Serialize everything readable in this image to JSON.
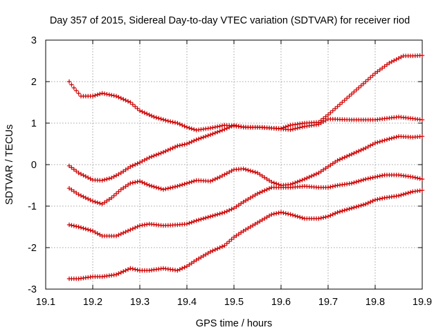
{
  "chart_data": {
    "type": "scatter",
    "title": "Day 357 of 2015, Sidereal Day-to-day VTEC variation (SDTVAR) for receiver riod",
    "xlabel": "GPS time / hours",
    "ylabel": "SDTVAR / TECUs",
    "xlim": [
      19.1,
      19.9
    ],
    "ylim": [
      -3,
      3
    ],
    "xticks": [
      19.1,
      19.2,
      19.3,
      19.4,
      19.5,
      19.6,
      19.7,
      19.8,
      19.9
    ],
    "xtick_labels": [
      "19.1",
      "19.2",
      "19.3",
      "19.4",
      "19.5",
      "19.6",
      "19.7",
      "19.8",
      "19.9"
    ],
    "yticks": [
      -3,
      -2,
      -1,
      0,
      1,
      2,
      3
    ],
    "ytick_labels": [
      "-3",
      "-2",
      "-1",
      "0",
      "1",
      "2",
      "3"
    ],
    "grid": true,
    "marker": "+",
    "color": "#cc0000",
    "series": [
      {
        "name": "series-top",
        "x": [
          19.15,
          19.16,
          19.175,
          19.2,
          19.22,
          19.25,
          19.28,
          19.3,
          19.33,
          19.36,
          19.38,
          19.4,
          19.42,
          19.45,
          19.48,
          19.5,
          19.53,
          19.56,
          19.6,
          19.62,
          19.65,
          19.68,
          19.7,
          19.75,
          19.8,
          19.85,
          19.9
        ],
        "y": [
          2.0,
          1.85,
          1.65,
          1.65,
          1.72,
          1.65,
          1.5,
          1.3,
          1.15,
          1.05,
          1.0,
          0.9,
          0.83,
          0.88,
          0.95,
          0.93,
          0.9,
          0.9,
          0.86,
          0.84,
          0.92,
          0.97,
          1.1,
          1.08,
          1.08,
          1.15,
          1.08
        ]
      },
      {
        "name": "series-second",
        "x": [
          19.15,
          19.17,
          19.2,
          19.22,
          19.24,
          19.26,
          19.28,
          19.3,
          19.32,
          19.35,
          19.38,
          19.4,
          19.42,
          19.45,
          19.48,
          19.5,
          19.52,
          19.55,
          19.58,
          19.6,
          19.62,
          19.65,
          19.68,
          19.7,
          19.72,
          19.75,
          19.78,
          19.8,
          19.83,
          19.86,
          19.88,
          19.9
        ],
        "y": [
          -0.03,
          -0.2,
          -0.37,
          -0.38,
          -0.32,
          -0.2,
          -0.05,
          0.05,
          0.17,
          0.3,
          0.45,
          0.5,
          0.6,
          0.72,
          0.85,
          0.95,
          0.9,
          0.9,
          0.88,
          0.87,
          0.95,
          1.0,
          1.02,
          1.2,
          1.4,
          1.7,
          2.0,
          2.2,
          2.45,
          2.62,
          2.62,
          2.63
        ]
      },
      {
        "name": "series-third",
        "x": [
          19.15,
          19.17,
          19.2,
          19.22,
          19.24,
          19.26,
          19.28,
          19.3,
          19.32,
          19.35,
          19.38,
          19.4,
          19.42,
          19.45,
          19.47,
          19.5,
          19.52,
          19.55,
          19.58,
          19.6,
          19.62,
          19.65,
          19.68,
          19.7,
          19.72,
          19.75,
          19.78,
          19.8,
          19.83,
          19.85,
          19.88,
          19.9
        ],
        "y": [
          -0.57,
          -0.72,
          -0.88,
          -0.95,
          -0.8,
          -0.6,
          -0.45,
          -0.4,
          -0.5,
          -0.6,
          -0.52,
          -0.45,
          -0.38,
          -0.4,
          -0.3,
          -0.12,
          -0.1,
          -0.2,
          -0.42,
          -0.5,
          -0.48,
          -0.35,
          -0.2,
          -0.05,
          0.1,
          0.25,
          0.4,
          0.52,
          0.62,
          0.68,
          0.66,
          0.68
        ]
      },
      {
        "name": "series-fourth",
        "x": [
          19.15,
          19.17,
          19.2,
          19.22,
          19.25,
          19.28,
          19.3,
          19.32,
          19.35,
          19.38,
          19.4,
          19.42,
          19.45,
          19.48,
          19.5,
          19.52,
          19.55,
          19.58,
          19.6,
          19.62,
          19.65,
          19.68,
          19.7,
          19.72,
          19.75,
          19.78,
          19.8,
          19.82,
          19.85,
          19.88,
          19.9
        ],
        "y": [
          -1.45,
          -1.5,
          -1.6,
          -1.72,
          -1.72,
          -1.57,
          -1.47,
          -1.43,
          -1.47,
          -1.45,
          -1.43,
          -1.35,
          -1.25,
          -1.15,
          -1.05,
          -0.9,
          -0.7,
          -0.55,
          -0.55,
          -0.55,
          -0.52,
          -0.55,
          -0.55,
          -0.5,
          -0.45,
          -0.35,
          -0.3,
          -0.25,
          -0.25,
          -0.3,
          -0.35
        ]
      },
      {
        "name": "series-bottom",
        "x": [
          19.15,
          19.17,
          19.2,
          19.22,
          19.25,
          19.28,
          19.3,
          19.32,
          19.35,
          19.38,
          19.4,
          19.42,
          19.45,
          19.48,
          19.5,
          19.52,
          19.55,
          19.58,
          19.6,
          19.62,
          19.65,
          19.68,
          19.7,
          19.72,
          19.75,
          19.78,
          19.8,
          19.82,
          19.85,
          19.88,
          19.9
        ],
        "y": [
          -2.75,
          -2.75,
          -2.7,
          -2.7,
          -2.65,
          -2.5,
          -2.55,
          -2.55,
          -2.5,
          -2.55,
          -2.45,
          -2.3,
          -2.1,
          -1.95,
          -1.75,
          -1.6,
          -1.4,
          -1.2,
          -1.15,
          -1.2,
          -1.3,
          -1.3,
          -1.25,
          -1.15,
          -1.05,
          -0.95,
          -0.85,
          -0.8,
          -0.75,
          -0.65,
          -0.62
        ]
      }
    ]
  }
}
